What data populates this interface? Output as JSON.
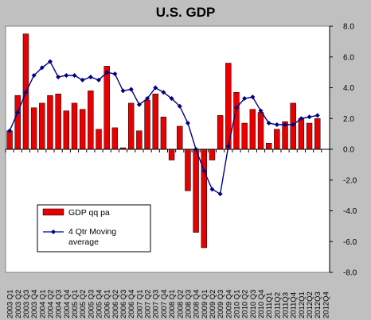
{
  "chart_data": {
    "type": "bar+line",
    "title": "U.S. GDP",
    "xlabel": "",
    "ylabel": "",
    "ylim": [
      -8.0,
      8.0
    ],
    "yticks": [
      "8.0",
      "6.0",
      "4.0",
      "2.0",
      "0.0",
      "-2.0",
      "-4.0",
      "-6.0",
      "-8.0"
    ],
    "grid": false,
    "legend_position": "bottom-left",
    "categories": [
      "2003 Q1",
      "2003 Q2",
      "2003 Q3",
      "2003 Q4",
      "2004 Q1",
      "2004 Q2",
      "2004 Q3",
      "2004 Q4",
      "2005 Q1",
      "2005 Q2",
      "2005 Q3",
      "2005 Q4",
      "2006 Q1",
      "2006 Q2",
      "2006 Q3",
      "2006 Q4",
      "2007 Q1",
      "2007 Q2",
      "2007 Q3",
      "2007 Q4",
      "2008 Q1",
      "2008 Q2",
      "2008 Q3",
      "2008 Q4",
      "2009 Q1",
      "2009 Q2",
      "2009 Q3",
      "2009 Q4",
      "2010 Q1",
      "2010 Q2",
      "2010 Q3",
      "2010 Q4",
      "2011Q1",
      "2011Q2",
      "2011Q3",
      "2011Q4",
      "2012Q1",
      "2012Q2",
      "2012Q3",
      "2012Q4"
    ],
    "series": [
      {
        "name": "GDP qq pa",
        "kind": "bar",
        "color": "#e80000",
        "values": [
          1.2,
          3.5,
          7.5,
          2.7,
          3.0,
          3.5,
          3.6,
          2.5,
          3.0,
          2.6,
          3.8,
          1.3,
          5.4,
          1.4,
          0.1,
          3.0,
          1.2,
          3.2,
          3.6,
          2.1,
          -0.7,
          1.5,
          -2.7,
          -5.4,
          -6.4,
          -0.7,
          2.2,
          5.6,
          3.7,
          1.7,
          2.6,
          2.4,
          0.4,
          1.3,
          1.8,
          3.0,
          2.0,
          1.7,
          2.0,
          null
        ]
      },
      {
        "name": "4 Qtr Moving average",
        "kind": "line",
        "color": "#000080",
        "values": [
          1.2,
          2.4,
          3.7,
          4.8,
          5.3,
          5.7,
          4.7,
          4.8,
          4.8,
          4.5,
          4.7,
          4.5,
          5.0,
          4.9,
          3.8,
          3.9,
          2.9,
          3.3,
          4.0,
          3.7,
          3.3,
          2.8,
          1.7,
          0.0,
          -1.4,
          -2.6,
          -2.9,
          0.2,
          2.7,
          3.3,
          3.4,
          2.5,
          1.7,
          1.6,
          1.6,
          1.6,
          2.0,
          2.1,
          2.2,
          null
        ]
      }
    ]
  },
  "colors": {
    "background": "#c0c0c0",
    "plot_area": "#ffffff",
    "bar": "#e80000",
    "line": "#000080"
  }
}
